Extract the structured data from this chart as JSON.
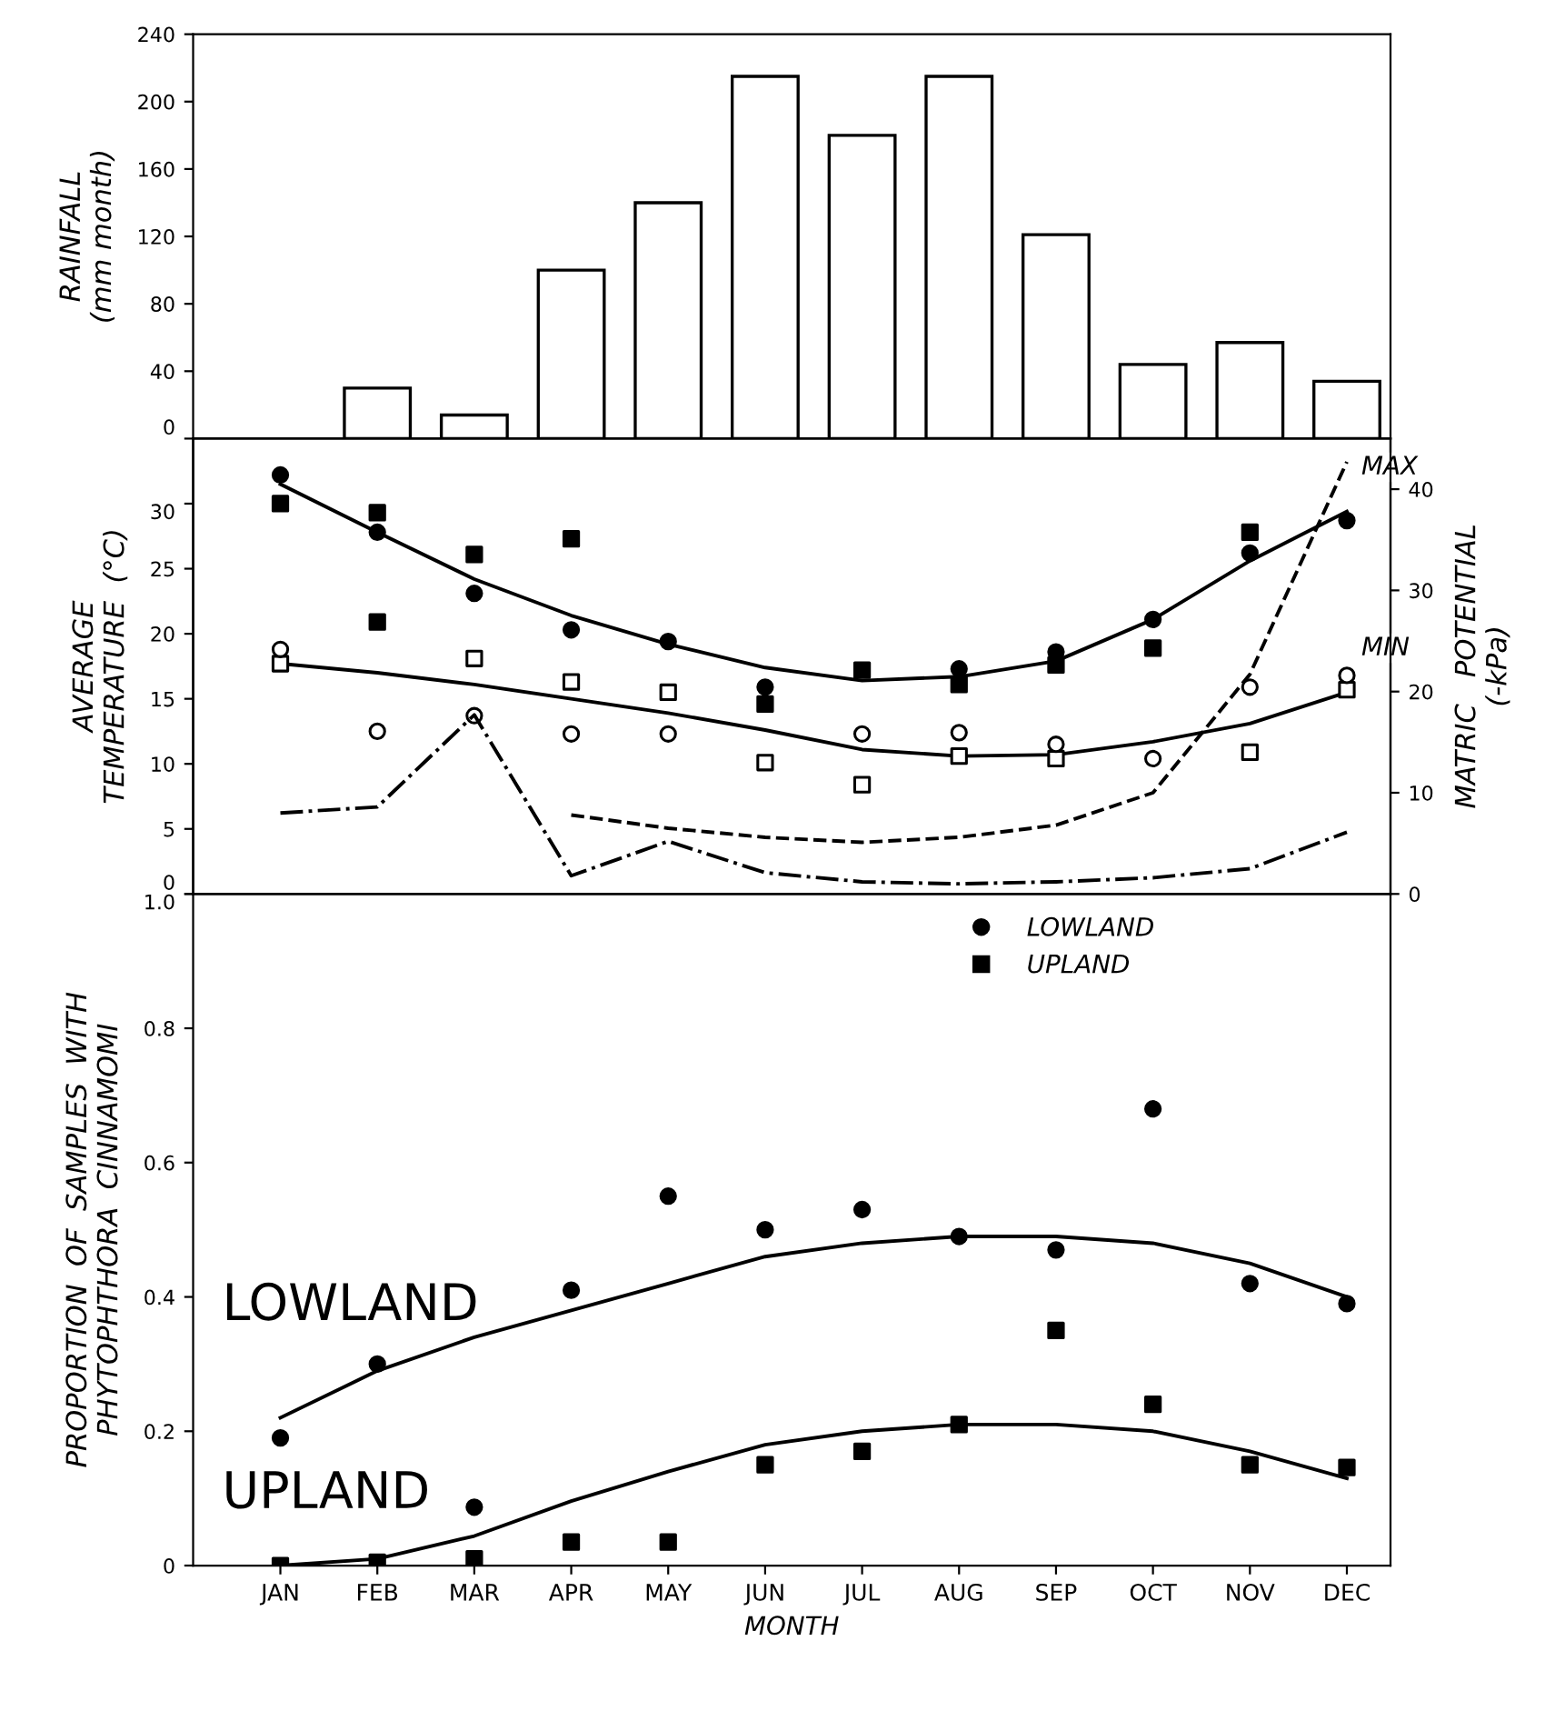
{
  "chart_data": [
    {
      "type": "bar",
      "ylabel": "RAINFALL\n(mm month)",
      "values": [
        null,
        30,
        14,
        100,
        140,
        215,
        180,
        215,
        121,
        44,
        57,
        34
      ],
      "color": "#ffffff",
      "ylim": [
        0,
        240
      ],
      "yticks": [
        0,
        40,
        80,
        120,
        160,
        200,
        240
      ],
      "tick_labels": "y",
      "grid": false
    },
    {
      "type": "scatter",
      "ylabel": "AVERAGE\nTEMPERATURE  (°C)",
      "y2label": "MATRIC   POTENTIAL\n(-kPa)",
      "ylim": [
        0,
        35
      ],
      "yticks": [
        0,
        5,
        10,
        15,
        20,
        25,
        30
      ],
      "y2lim": [
        0,
        45
      ],
      "y2ticks": [
        0,
        10,
        20,
        30,
        40
      ],
      "tick_labels": "y",
      "grid": false,
      "series": [
        {
          "type": "scatter",
          "marker": "circle",
          "color": "#000000",
          "values": [
            32.2,
            27.8,
            23.1,
            20.3,
            19.4,
            15.9,
            null,
            17.3,
            18.6,
            21.1,
            26.2,
            28.7
          ]
        },
        {
          "type": "scatter",
          "marker": "square",
          "color": "#000000",
          "values": [
            30.0,
            29.3,
            26.1,
            27.3,
            null,
            14.6,
            17.2,
            16.1,
            17.6,
            18.9,
            27.8,
            null
          ]
        },
        {
          "type": "scatter",
          "marker": "square",
          "color": "#000000",
          "values": [
            null,
            20.9,
            null,
            null,
            null,
            null,
            null,
            null,
            null,
            null,
            null,
            null
          ]
        },
        {
          "type": "scatter",
          "marker": "square",
          "color": "#ffffff",
          "values": [
            17.7,
            null,
            18.1,
            16.3,
            15.5,
            10.1,
            8.4,
            10.6,
            10.4,
            null,
            10.9,
            15.7
          ]
        },
        {
          "type": "scatter",
          "marker": "circle",
          "color": "#ffffff",
          "values": [
            18.8,
            12.5,
            13.7,
            12.3,
            12.3,
            null,
            12.3,
            12.4,
            11.5,
            10.4,
            15.9,
            16.8
          ]
        },
        {
          "type": "line",
          "name": "MAX",
          "color": "#000000",
          "line_style": "solid",
          "values": [
            31.5,
            27.8,
            24.2,
            21.4,
            19.2,
            17.4,
            16.4,
            16.7,
            17.9,
            21.1,
            25.6,
            29.4
          ]
        },
        {
          "type": "line",
          "name": "MIN",
          "color": "#000000",
          "line_style": "solid",
          "values": [
            17.7,
            17.0,
            16.1,
            15.0,
            13.9,
            12.6,
            11.1,
            10.6,
            10.7,
            11.7,
            13.1,
            15.5
          ]
        },
        {
          "type": "line",
          "axis": "y2",
          "color": "#000000",
          "line_style": "dashed",
          "values": [
            null,
            null,
            null,
            7.8,
            6.5,
            5.6,
            5.1,
            5.6,
            6.8,
            10.0,
            21.7,
            42.7
          ]
        },
        {
          "type": "line",
          "axis": "y2",
          "color": "#000000",
          "line_style": "dashdot",
          "values": [
            8.0,
            8.6,
            17.7,
            1.8,
            5.2,
            2.1,
            1.2,
            1.0,
            1.2,
            1.6,
            2.5,
            6.1
          ]
        }
      ]
    },
    {
      "type": "scatter",
      "xlabel": "MONTH",
      "ylabel": "PROPORTION  OF  SAMPLES  WITH\nPHYTOPHTHORA  CINNAMOMI",
      "categories": [
        "JAN",
        "FEB",
        "MAR",
        "APR",
        "MAY",
        "JUN",
        "JUL",
        "AUG",
        "SEP",
        "OCT",
        "NOV",
        "DEC"
      ],
      "ylim": [
        0,
        1.0
      ],
      "yticks": [
        0,
        0.2,
        0.4,
        0.6,
        0.8,
        {
          "value": 1.0,
          "label": "1.0"
        }
      ],
      "grid": false,
      "legend": "top",
      "series": [
        {
          "type": "scatter",
          "name": "LOWLAND",
          "marker": "circle",
          "color": "#000000",
          "values": [
            0.19,
            0.3,
            0.087,
            0.41,
            0.55,
            0.5,
            0.53,
            0.49,
            0.47,
            0.68,
            0.42,
            0.39
          ]
        },
        {
          "type": "scatter",
          "name": "UPLAND",
          "marker": "square",
          "color": "#000000",
          "values": [
            0,
            0.005,
            0.01,
            0.035,
            0.035,
            0.15,
            0.17,
            0.21,
            0.35,
            0.24,
            0.15,
            0.146
          ]
        },
        {
          "type": "line",
          "name": "LOWLAND",
          "color": "#000000",
          "line_style": "solid",
          "values": [
            0.22,
            0.29,
            0.34,
            0.38,
            0.42,
            0.46,
            0.48,
            0.49,
            0.49,
            0.48,
            0.45,
            0.4
          ]
        },
        {
          "type": "line",
          "name": "UPLAND",
          "color": "#000000",
          "line_style": "solid",
          "values": [
            0,
            0.01,
            0.044,
            0.096,
            0.14,
            0.18,
            0.2,
            0.21,
            0.21,
            0.2,
            0.17,
            0.13
          ]
        }
      ]
    }
  ]
}
